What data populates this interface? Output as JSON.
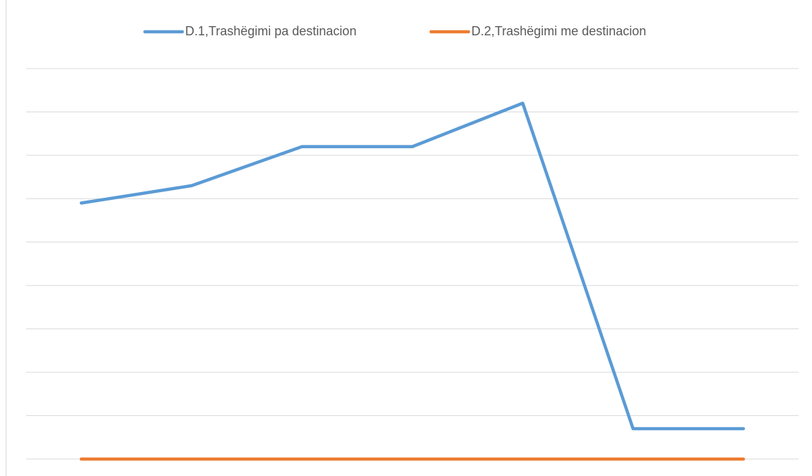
{
  "chart_data": {
    "type": "line",
    "categories": [
      null,
      null,
      null,
      null,
      null,
      null,
      null
    ],
    "series": [
      {
        "name": "D.1,Trashëgimi pa destinacion",
        "color": "#5b9bd5",
        "values": [
          5.9,
          6.3,
          7.2,
          7.2,
          8.2,
          0.7,
          0.7
        ]
      },
      {
        "name": "D.2,Trashëgimi me destinacion",
        "color": "#ed7d31",
        "values": [
          0,
          0,
          0,
          0,
          0,
          0,
          0
        ]
      }
    ],
    "ylim": [
      0,
      9
    ],
    "yticks": [
      0,
      1,
      2,
      3,
      4,
      5,
      6,
      7,
      8,
      9
    ],
    "grid": true,
    "legend": "top"
  }
}
